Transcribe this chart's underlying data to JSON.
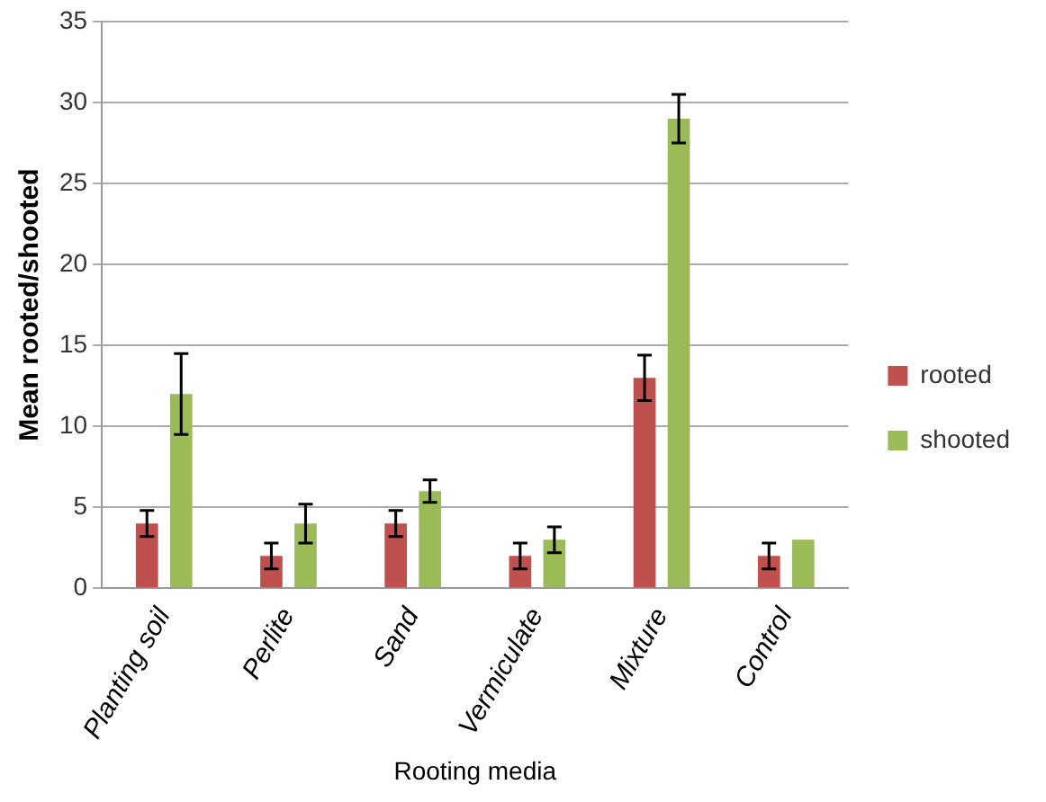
{
  "chart_data": {
    "type": "bar",
    "xlabel": "Rooting media",
    "ylabel": "Mean rooted/shooted",
    "categories": [
      "Planting soil",
      "Perlite",
      "Sand",
      "Vermiculate",
      "Mixture",
      "Control"
    ],
    "series": [
      {
        "name": "rooted",
        "color": "#c0504d",
        "values": [
          4,
          2,
          4,
          2,
          13,
          2
        ],
        "errors": [
          0.8,
          0.8,
          0.8,
          0.8,
          1.4,
          0.8
        ]
      },
      {
        "name": "shooted",
        "color": "#9bbb59",
        "values": [
          12,
          4,
          6,
          3,
          29,
          3
        ],
        "errors": [
          2.5,
          1.2,
          0.7,
          0.8,
          1.5,
          null
        ]
      }
    ],
    "ylim": [
      0,
      35
    ],
    "yticks": [
      0,
      5,
      10,
      15,
      20,
      25,
      30,
      35
    ],
    "grid": "y",
    "legend": "right"
  }
}
